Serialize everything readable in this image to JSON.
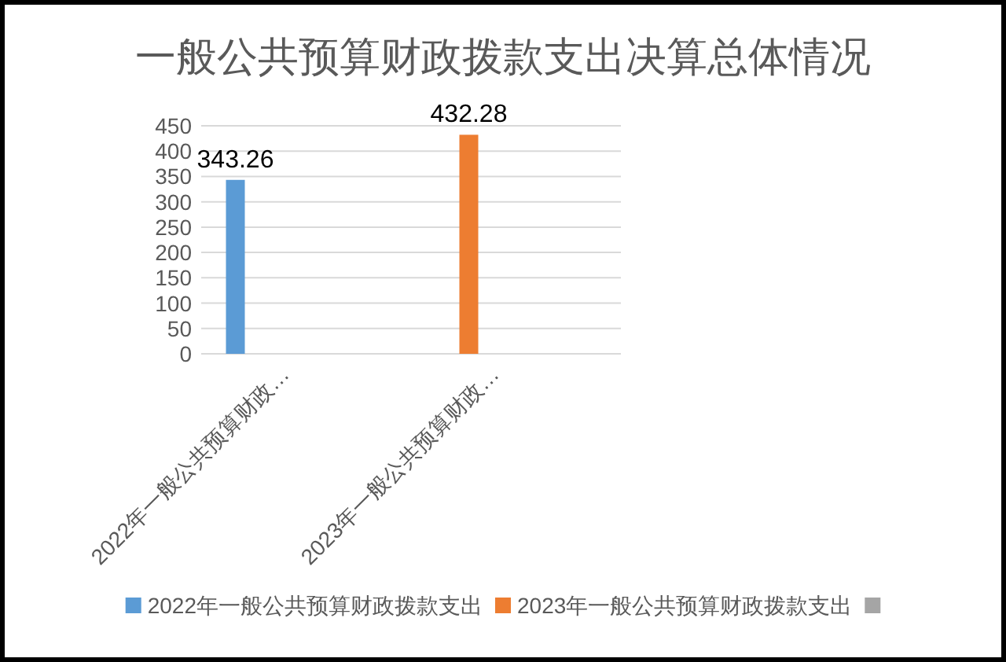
{
  "chart_data": {
    "type": "bar",
    "title": "一般公共预算财政拨款支出决算总体情况",
    "categories": [
      "2022年一般公共预算财政…",
      "2023年一般公共预算财政…"
    ],
    "series": [
      {
        "name": "2022年一般公共预算财政拨款支出",
        "color": "#5b9bd5",
        "values": [
          343.26,
          null
        ]
      },
      {
        "name": "2023年一般公共预算财政拨款支出",
        "color": "#ed7d31",
        "values": [
          null,
          432.28
        ]
      },
      {
        "color": "#a5a5a5",
        "values": [
          null,
          null
        ]
      }
    ],
    "ylim": [
      0,
      450
    ],
    "yticks": [
      0,
      50,
      100,
      150,
      200,
      250,
      300,
      350,
      400,
      450
    ],
    "grid": "y",
    "data_labels": true,
    "legend": "bottom"
  }
}
